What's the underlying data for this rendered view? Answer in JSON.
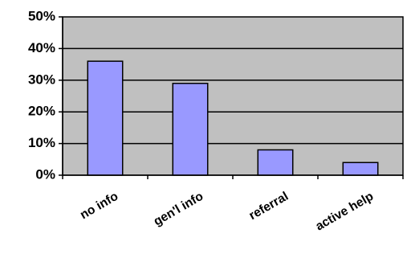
{
  "chart_data": {
    "type": "bar",
    "categories": [
      "no info",
      "gen'l info",
      "referral",
      "active help"
    ],
    "values": [
      36,
      29,
      8,
      4
    ],
    "y_unit": "%",
    "ylim": [
      0,
      50
    ],
    "yticks": [
      "0%",
      "10%",
      "20%",
      "30%",
      "40%",
      "50%"
    ],
    "grid": true,
    "colors": {
      "plot_background": "#c0c0c0",
      "bar_fill": "#9999ff",
      "bar_stroke": "#000000",
      "gridline": "#000000"
    }
  }
}
